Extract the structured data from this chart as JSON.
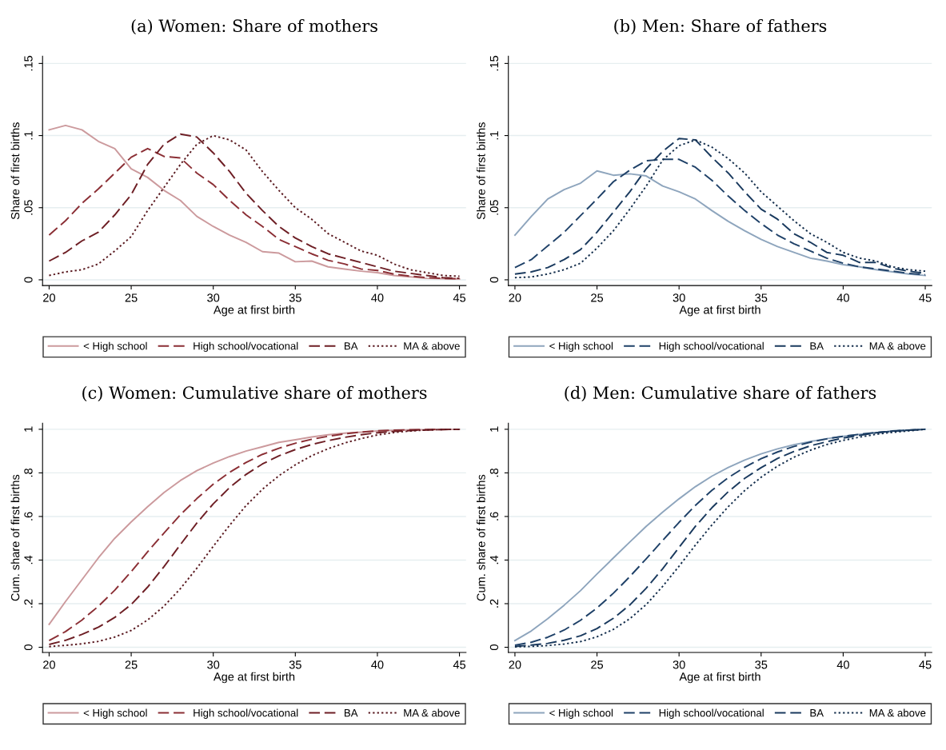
{
  "chart_data": [
    {
      "type": "line",
      "title": "(a) Women: Share of mothers",
      "xlabel": "Age at first birth",
      "ylabel": "Share of first births",
      "x": [
        20,
        21,
        22,
        23,
        24,
        25,
        26,
        27,
        28,
        29,
        30,
        31,
        32,
        33,
        34,
        35,
        36,
        37,
        38,
        39,
        40,
        41,
        42,
        43,
        44,
        45
      ],
      "xlim": [
        19.6,
        45.4
      ],
      "ylim": [
        -0.004,
        0.155
      ],
      "xticks": [
        20,
        25,
        30,
        35,
        40,
        45
      ],
      "yticks": [
        {
          "value": 0,
          "label": "0"
        },
        {
          "value": 0.05,
          "label": ".05"
        },
        {
          "value": 0.1,
          "label": ".1"
        },
        {
          "value": 0.15,
          "label": ".15"
        }
      ],
      "grid": "y",
      "legend": "bottom",
      "marker": "none",
      "series": [
        {
          "name": "< High school",
          "color": "#cc9a9d",
          "line_style": "solid",
          "values": [
            0.104,
            0.107,
            0.104,
            0.096,
            0.091,
            0.077,
            0.071,
            0.062,
            0.055,
            0.044,
            0.037,
            0.031,
            0.026,
            0.0195,
            0.0185,
            0.0125,
            0.013,
            0.009,
            0.0075,
            0.006,
            0.005,
            0.003,
            0.002,
            0.001,
            0.0008,
            0.0005
          ]
        },
        {
          "name": "High school/vocational",
          "color": "#8b2f35",
          "line_style": "dashed",
          "values": [
            0.031,
            0.041,
            0.053,
            0.063,
            0.074,
            0.085,
            0.091,
            0.0855,
            0.0845,
            0.074,
            0.066,
            0.055,
            0.045,
            0.037,
            0.028,
            0.023,
            0.018,
            0.0135,
            0.011,
            0.0075,
            0.0065,
            0.004,
            0.0025,
            0.0015,
            0.001,
            0.0007
          ]
        },
        {
          "name": "BA",
          "color": "#6e1f25",
          "line_style": "dashed",
          "values": [
            0.013,
            0.019,
            0.027,
            0.033,
            0.045,
            0.059,
            0.08,
            0.094,
            0.101,
            0.099,
            0.088,
            0.075,
            0.06,
            0.048,
            0.037,
            0.029,
            0.023,
            0.018,
            0.015,
            0.012,
            0.009,
            0.006,
            0.0045,
            0.003,
            0.0015,
            0.001
          ]
        },
        {
          "name": "MA & above",
          "color": "#5a1a20",
          "line_style": "dotted",
          "values": [
            0.003,
            0.0055,
            0.007,
            0.011,
            0.02,
            0.03,
            0.048,
            0.064,
            0.08,
            0.094,
            0.1,
            0.097,
            0.09,
            0.075,
            0.062,
            0.05,
            0.042,
            0.032,
            0.026,
            0.02,
            0.017,
            0.011,
            0.007,
            0.005,
            0.003,
            0.0025
          ]
        }
      ]
    },
    {
      "type": "line",
      "title": "(b) Men: Share of fathers",
      "xlabel": "Age at first birth",
      "ylabel": "Share of first births",
      "x": [
        20,
        21,
        22,
        23,
        24,
        25,
        26,
        27,
        28,
        29,
        30,
        31,
        32,
        33,
        34,
        35,
        36,
        37,
        38,
        39,
        40,
        41,
        42,
        43,
        44,
        45
      ],
      "xlim": [
        19.6,
        45.4
      ],
      "ylim": [
        -0.004,
        0.155
      ],
      "xticks": [
        20,
        25,
        30,
        35,
        40,
        45
      ],
      "yticks": [
        {
          "value": 0,
          "label": "0"
        },
        {
          "value": 0.05,
          "label": ".05"
        },
        {
          "value": 0.1,
          "label": ".1"
        },
        {
          "value": 0.15,
          "label": ".15"
        }
      ],
      "grid": "y",
      "legend": "bottom",
      "marker": "none",
      "series": [
        {
          "name": "< High school",
          "color": "#8ea5bd",
          "line_style": "solid",
          "values": [
            0.031,
            0.044,
            0.056,
            0.0625,
            0.067,
            0.0755,
            0.0725,
            0.0735,
            0.072,
            0.065,
            0.061,
            0.056,
            0.048,
            0.0405,
            0.034,
            0.028,
            0.023,
            0.019,
            0.015,
            0.013,
            0.0105,
            0.009,
            0.007,
            0.0055,
            0.004,
            0.003
          ]
        },
        {
          "name": "High school/vocational",
          "color": "#1f4168",
          "line_style": "dashed",
          "values": [
            0.0085,
            0.014,
            0.0235,
            0.033,
            0.0445,
            0.056,
            0.068,
            0.076,
            0.0825,
            0.0835,
            0.0835,
            0.078,
            0.069,
            0.058,
            0.048,
            0.039,
            0.031,
            0.025,
            0.02,
            0.015,
            0.0115,
            0.009,
            0.0075,
            0.006,
            0.0045,
            0.0035
          ]
        },
        {
          "name": "BA",
          "color": "#1a3a5e",
          "line_style": "dashed",
          "values": [
            0.004,
            0.0055,
            0.0085,
            0.014,
            0.021,
            0.033,
            0.047,
            0.061,
            0.077,
            0.089,
            0.098,
            0.097,
            0.085,
            0.074,
            0.061,
            0.049,
            0.042,
            0.032,
            0.026,
            0.019,
            0.017,
            0.012,
            0.012,
            0.008,
            0.006,
            0.0045
          ]
        },
        {
          "name": "MA & above",
          "color": "#152f4d",
          "line_style": "dotted",
          "values": [
            0.0015,
            0.002,
            0.004,
            0.007,
            0.0115,
            0.022,
            0.034,
            0.049,
            0.065,
            0.083,
            0.093,
            0.097,
            0.092,
            0.084,
            0.074,
            0.061,
            0.051,
            0.041,
            0.032,
            0.026,
            0.019,
            0.015,
            0.013,
            0.009,
            0.007,
            0.006
          ]
        }
      ]
    },
    {
      "type": "line",
      "title": "(c) Women: Cumulative share of mothers",
      "xlabel": "Age at first birth",
      "ylabel": "Cum. share of first births",
      "x": [
        20,
        21,
        22,
        23,
        24,
        25,
        26,
        27,
        28,
        29,
        30,
        31,
        32,
        33,
        34,
        35,
        36,
        37,
        38,
        39,
        40,
        41,
        42,
        43,
        44,
        45
      ],
      "xlim": [
        19.6,
        45.4
      ],
      "ylim": [
        -0.024,
        1.028
      ],
      "xticks": [
        20,
        25,
        30,
        35,
        40,
        45
      ],
      "yticks": [
        {
          "value": 0,
          "label": "0"
        },
        {
          "value": 0.2,
          "label": ".2"
        },
        {
          "value": 0.4,
          "label": ".4"
        },
        {
          "value": 0.6,
          "label": ".6"
        },
        {
          "value": 0.8,
          "label": ".8"
        },
        1
      ],
      "grid": "y",
      "legend": "bottom",
      "marker": "none",
      "series": [
        {
          "name": "< High school",
          "color": "#cc9a9d",
          "line_style": "solid",
          "values": [
            0.105,
            0.21,
            0.31,
            0.41,
            0.5,
            0.575,
            0.645,
            0.71,
            0.765,
            0.81,
            0.845,
            0.875,
            0.9,
            0.92,
            0.94,
            0.952,
            0.965,
            0.975,
            0.982,
            0.987,
            0.992,
            0.995,
            0.997,
            0.998,
            0.999,
            1
          ]
        },
        {
          "name": "High school/vocational",
          "color": "#8b2f35",
          "line_style": "dashed",
          "values": [
            0.031,
            0.072,
            0.125,
            0.188,
            0.262,
            0.347,
            0.438,
            0.524,
            0.608,
            0.682,
            0.748,
            0.803,
            0.848,
            0.885,
            0.913,
            0.936,
            0.954,
            0.968,
            0.979,
            0.987,
            0.993,
            0.996,
            0.998,
            0.999,
            1,
            1
          ]
        },
        {
          "name": "BA",
          "color": "#6e1f25",
          "line_style": "dashed",
          "values": [
            0.013,
            0.032,
            0.059,
            0.092,
            0.137,
            0.196,
            0.276,
            0.37,
            0.471,
            0.57,
            0.658,
            0.733,
            0.793,
            0.841,
            0.878,
            0.907,
            0.93,
            0.948,
            0.963,
            0.975,
            0.984,
            0.99,
            0.994,
            0.997,
            0.999,
            1
          ]
        },
        {
          "name": "MA & above",
          "color": "#5a1a20",
          "line_style": "dotted",
          "values": [
            0.003,
            0.009,
            0.016,
            0.027,
            0.047,
            0.077,
            0.125,
            0.189,
            0.269,
            0.363,
            0.463,
            0.56,
            0.65,
            0.725,
            0.787,
            0.837,
            0.879,
            0.911,
            0.937,
            0.957,
            0.974,
            0.985,
            0.992,
            0.997,
            0.999,
            1
          ]
        }
      ]
    },
    {
      "type": "line",
      "title": "(d) Men: Cumulative share of fathers",
      "xlabel": "Age at first birth",
      "ylabel": "Cum. share of first births",
      "x": [
        20,
        21,
        22,
        23,
        24,
        25,
        26,
        27,
        28,
        29,
        30,
        31,
        32,
        33,
        34,
        35,
        36,
        37,
        38,
        39,
        40,
        41,
        42,
        43,
        44,
        45
      ],
      "xlim": [
        19.6,
        45.4
      ],
      "ylim": [
        -0.024,
        1.028
      ],
      "xticks": [
        20,
        25,
        30,
        35,
        40,
        45
      ],
      "yticks": [
        {
          "value": 0,
          "label": "0"
        },
        {
          "value": 0.2,
          "label": ".2"
        },
        {
          "value": 0.4,
          "label": ".4"
        },
        {
          "value": 0.6,
          "label": ".6"
        },
        {
          "value": 0.8,
          "label": ".8"
        },
        1
      ],
      "grid": "y",
      "legend": "bottom",
      "marker": "none",
      "series": [
        {
          "name": "< High school",
          "color": "#8ea5bd",
          "line_style": "solid",
          "values": [
            0.031,
            0.075,
            0.131,
            0.193,
            0.26,
            0.336,
            0.41,
            0.483,
            0.555,
            0.62,
            0.681,
            0.737,
            0.785,
            0.825,
            0.859,
            0.887,
            0.91,
            0.929,
            0.944,
            0.957,
            0.968,
            0.977,
            0.984,
            0.991,
            0.996,
            1
          ]
        },
        {
          "name": "High school/vocational",
          "color": "#1f4168",
          "line_style": "dashed",
          "values": [
            0.009,
            0.023,
            0.046,
            0.079,
            0.124,
            0.18,
            0.248,
            0.324,
            0.406,
            0.49,
            0.573,
            0.651,
            0.72,
            0.778,
            0.826,
            0.865,
            0.896,
            0.921,
            0.941,
            0.956,
            0.968,
            0.977,
            0.985,
            0.991,
            0.996,
            1
          ]
        },
        {
          "name": "BA",
          "color": "#1a3a5e",
          "line_style": "dashed",
          "values": [
            0.004,
            0.01,
            0.018,
            0.032,
            0.053,
            0.086,
            0.133,
            0.194,
            0.271,
            0.36,
            0.458,
            0.555,
            0.64,
            0.714,
            0.775,
            0.824,
            0.866,
            0.898,
            0.924,
            0.943,
            0.96,
            0.972,
            0.984,
            0.992,
            0.996,
            1
          ]
        },
        {
          "name": "MA & above",
          "color": "#152f4d",
          "line_style": "dotted",
          "values": [
            0.002,
            0.004,
            0.008,
            0.015,
            0.026,
            0.048,
            0.082,
            0.131,
            0.196,
            0.279,
            0.372,
            0.469,
            0.561,
            0.645,
            0.719,
            0.78,
            0.831,
            0.872,
            0.904,
            0.93,
            0.949,
            0.964,
            0.977,
            0.986,
            0.993,
            1
          ]
        }
      ]
    }
  ]
}
